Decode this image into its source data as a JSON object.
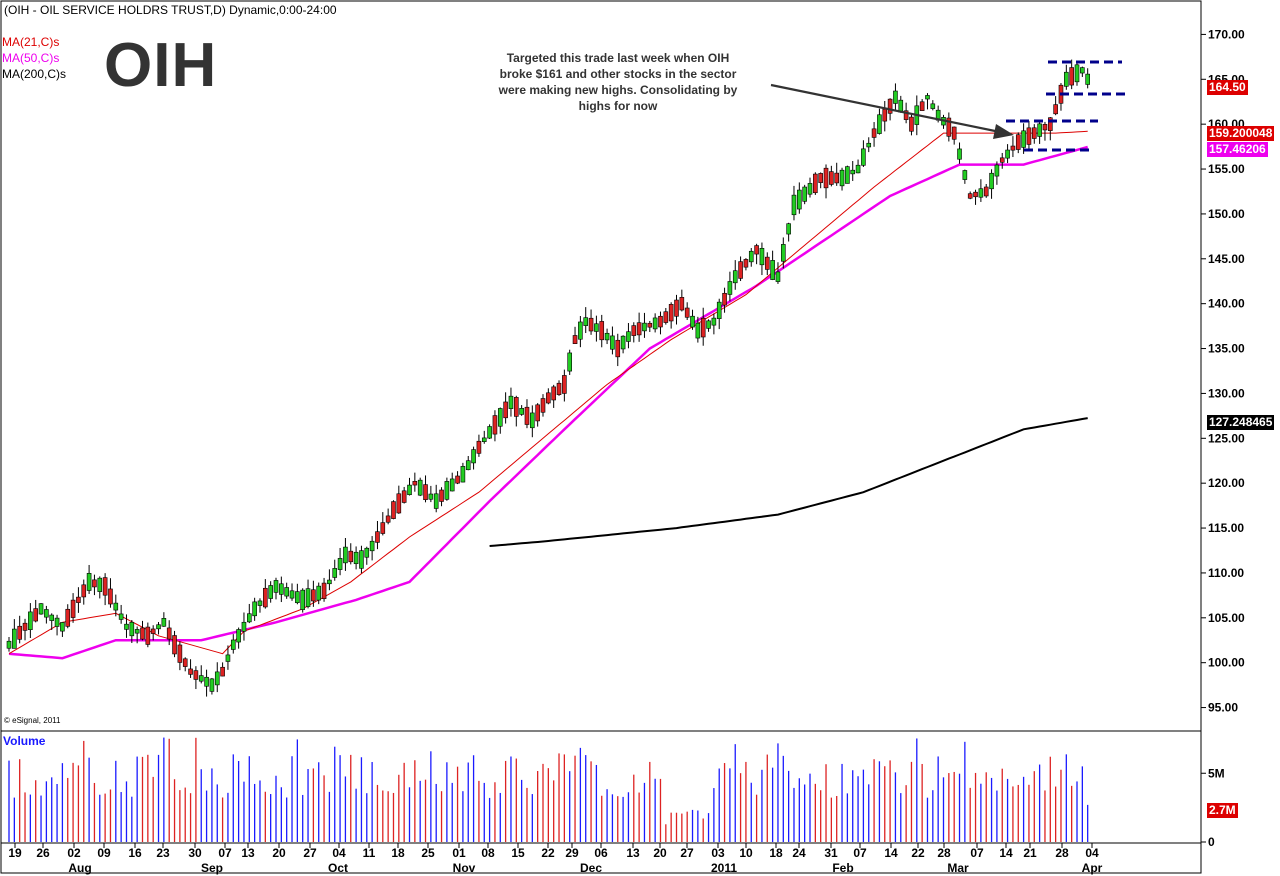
{
  "header": {
    "title": "(OIH - OIL SERVICE HOLDRS TRUST,D) Dynamic,0:00-24:00",
    "symbol": "OIH",
    "annotation_line1": "Targeted this trade last week when OIH",
    "annotation_line2": "broke $161 and other stocks in the sector",
    "annotation_line3": "were making new highs.  Consolidating by",
    "annotation_line4": "highs for now",
    "copyright": "© eSignal, 2011"
  },
  "legend": {
    "ma21": "MA(21,C)s",
    "ma50": "MA(50,C)s",
    "ma200": "MA(200,C)s",
    "volume": "Volume"
  },
  "colors": {
    "up": "#22cc22",
    "down": "#dd2222",
    "ma21": "#dd0000",
    "ma50": "#ee00ee",
    "ma200": "#000000",
    "vol_up": "#1a1aff",
    "vol_down": "#dd2222",
    "level_lines": "#00008b",
    "tag_last": "#dd0000",
    "tag_ma21": "#dd0000",
    "tag_ma50": "#ee00ee",
    "tag_ma200": "#000000"
  },
  "price_tags": {
    "last": "164.50",
    "ma21": "159.200048",
    "ma50": "157.46206",
    "ma200": "127.248465",
    "vol_last": "2.7M"
  },
  "chart_data": {
    "type": "candlestick",
    "ylim": [
      92.5,
      173.5
    ],
    "yticks": [
      "170.00",
      "165.00",
      "160.00",
      "155.00",
      "150.00",
      "145.00",
      "140.00",
      "135.00",
      "130.00",
      "125.00",
      "120.00",
      "115.00",
      "110.00",
      "105.00",
      "100.00",
      "95.00"
    ],
    "vol_ticks": [
      "5M",
      "0"
    ],
    "x_day_labels": [
      "19",
      "26",
      "02",
      "09",
      "16",
      "23",
      "30",
      "07",
      "13",
      "20",
      "27",
      "04",
      "11",
      "18",
      "25",
      "01",
      "08",
      "15",
      "22",
      "29",
      "06",
      "13",
      "20",
      "27",
      "03",
      "10",
      "18",
      "24",
      "31",
      "07",
      "14",
      "22",
      "28",
      "07",
      "14",
      "21",
      "28",
      "04"
    ],
    "x_month_labels": [
      "Aug",
      "Sep",
      "Oct",
      "Nov",
      "Dec",
      "2011",
      "Feb",
      "Mar",
      "Apr"
    ],
    "anchors": [
      [
        0,
        102
      ],
      [
        6,
        106
      ],
      [
        10,
        104
      ],
      [
        15,
        109
      ],
      [
        18,
        108.5
      ],
      [
        22,
        104
      ],
      [
        26,
        103
      ],
      [
        29,
        104.5
      ],
      [
        31,
        102
      ],
      [
        34,
        99
      ],
      [
        38,
        97.5
      ],
      [
        40,
        99
      ],
      [
        42,
        102
      ],
      [
        46,
        106
      ],
      [
        50,
        108.5
      ],
      [
        55,
        107
      ],
      [
        59,
        108
      ],
      [
        63,
        112
      ],
      [
        66,
        111.5
      ],
      [
        68,
        113
      ],
      [
        72,
        117
      ],
      [
        76,
        120
      ],
      [
        80,
        118
      ],
      [
        85,
        121
      ],
      [
        88,
        124
      ],
      [
        94,
        129
      ],
      [
        98,
        127
      ],
      [
        101,
        129.5
      ],
      [
        104,
        131
      ],
      [
        106,
        136
      ],
      [
        108,
        138
      ],
      [
        111,
        137
      ],
      [
        114,
        135
      ],
      [
        117,
        137
      ],
      [
        122,
        138
      ],
      [
        126,
        140
      ],
      [
        129,
        137
      ],
      [
        132,
        138
      ],
      [
        136,
        143
      ],
      [
        140,
        146
      ],
      [
        144,
        143
      ],
      [
        147,
        151
      ],
      [
        152,
        154
      ],
      [
        156,
        154
      ],
      [
        159,
        155
      ],
      [
        162,
        159
      ],
      [
        166,
        163
      ],
      [
        169,
        160
      ],
      [
        172,
        163
      ],
      [
        174,
        161
      ],
      [
        177,
        159
      ],
      [
        180,
        152
      ],
      [
        183,
        152.5
      ],
      [
        186,
        156
      ],
      [
        189,
        158
      ],
      [
        192,
        159
      ],
      [
        195,
        160
      ],
      [
        198,
        165
      ],
      [
        201,
        166
      ],
      [
        202,
        165
      ]
    ],
    "ma21_anchors": [
      [
        0,
        101
      ],
      [
        10,
        104.5
      ],
      [
        20,
        105.5
      ],
      [
        28,
        103
      ],
      [
        34,
        102
      ],
      [
        40,
        101
      ],
      [
        44,
        103.5
      ],
      [
        55,
        106
      ],
      [
        64,
        109
      ],
      [
        75,
        114
      ],
      [
        88,
        119
      ],
      [
        100,
        125
      ],
      [
        112,
        131
      ],
      [
        124,
        136
      ],
      [
        138,
        141
      ],
      [
        148,
        146
      ],
      [
        162,
        153
      ],
      [
        175,
        159
      ],
      [
        186,
        159
      ],
      [
        196,
        159
      ],
      [
        202,
        159.2
      ]
    ],
    "ma50_anchors": [
      [
        0,
        101
      ],
      [
        10,
        100.5
      ],
      [
        20,
        102.5
      ],
      [
        36,
        102.5
      ],
      [
        50,
        104.5
      ],
      [
        65,
        107
      ],
      [
        75,
        109
      ],
      [
        90,
        118
      ],
      [
        104,
        126
      ],
      [
        120,
        135
      ],
      [
        140,
        142
      ],
      [
        150,
        146
      ],
      [
        165,
        152
      ],
      [
        178,
        155.5
      ],
      [
        190,
        155.5
      ],
      [
        202,
        157.46
      ]
    ],
    "ma200_anchors": [
      [
        90,
        113
      ],
      [
        100,
        113.5
      ],
      [
        125,
        115
      ],
      [
        144,
        116.5
      ],
      [
        160,
        119
      ],
      [
        175,
        122.5
      ],
      [
        190,
        126
      ],
      [
        202,
        127.25
      ]
    ],
    "ma200_start": 90,
    "volume_max": 8000000
  }
}
